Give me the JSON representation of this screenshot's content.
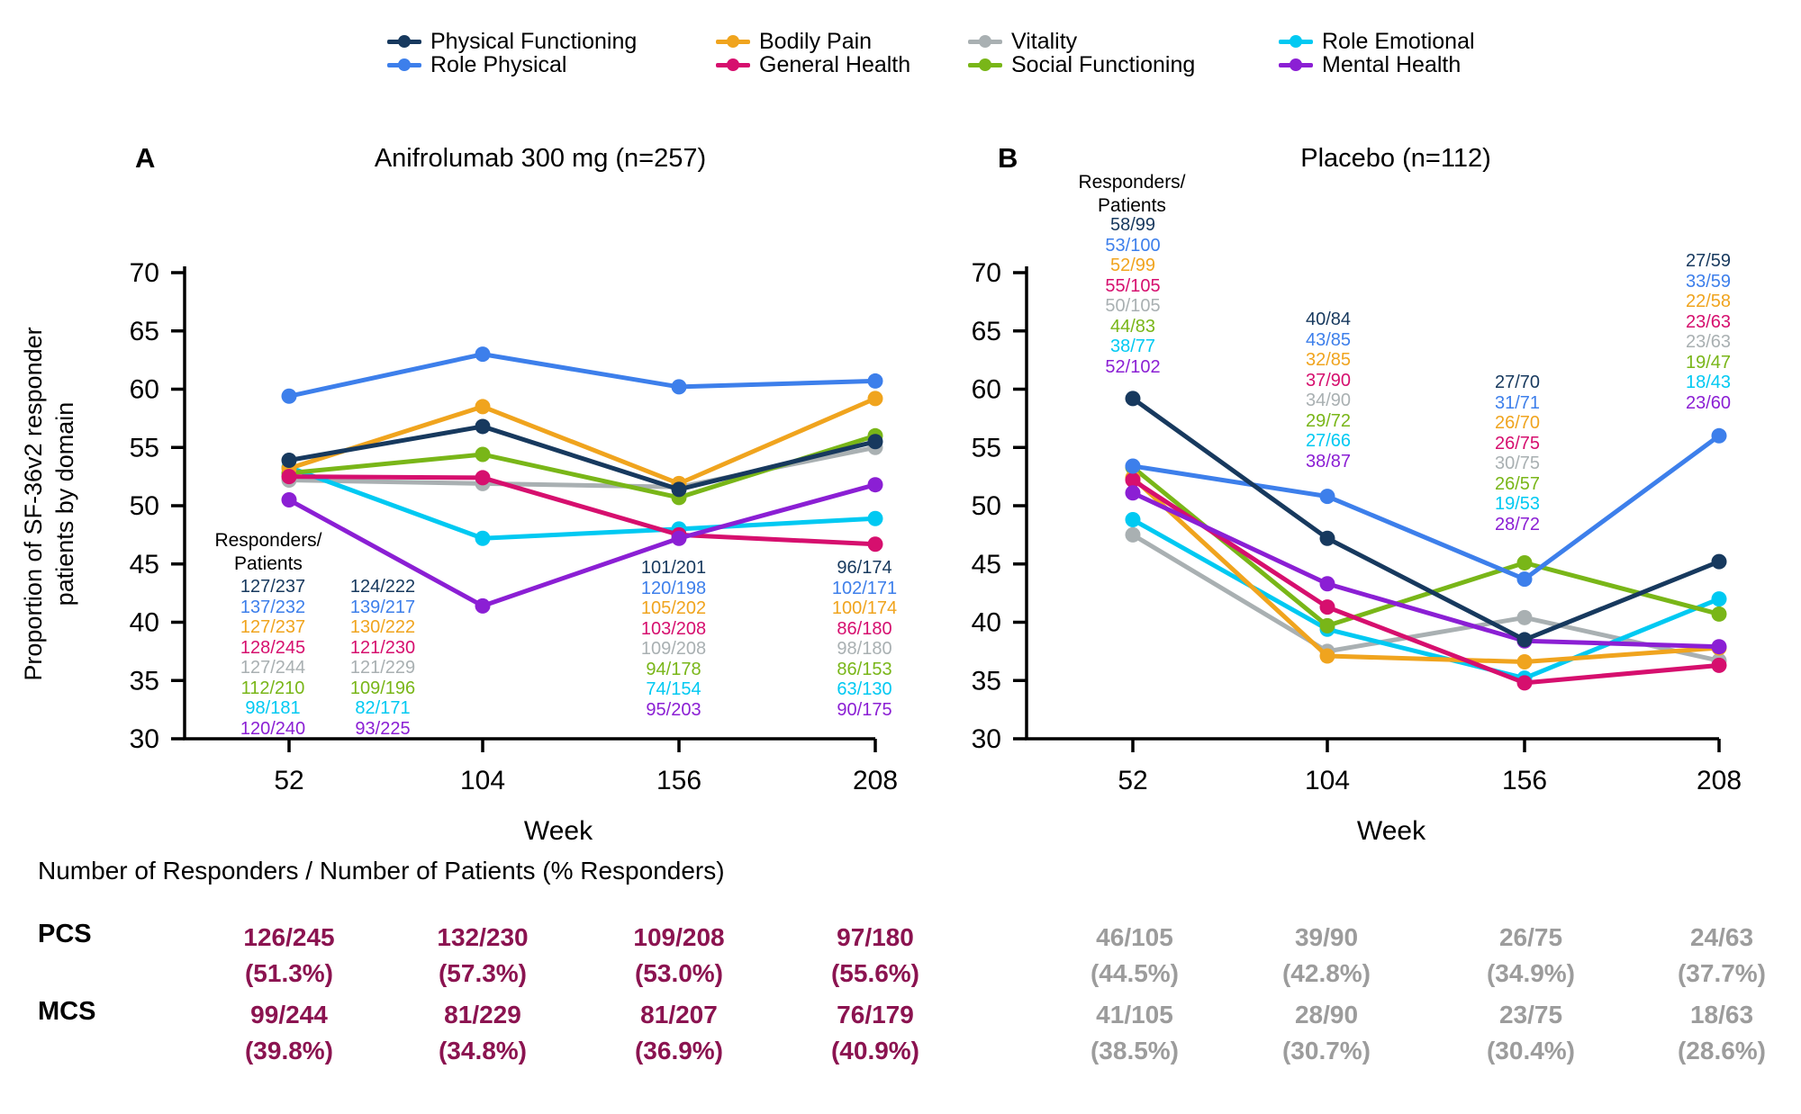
{
  "legend": {
    "items": [
      {
        "label": "Physical Functioning",
        "color": "#17395E"
      },
      {
        "label": "Role Physical",
        "color": "#3D7FEB"
      },
      {
        "label": "Bodily Pain",
        "color": "#F0A41E"
      },
      {
        "label": "General Health",
        "color": "#D60F6E"
      },
      {
        "label": "Vitality",
        "color": "#A9B0B2"
      },
      {
        "label": "Social Functioning",
        "color": "#79B618"
      },
      {
        "label": "Role Emotional",
        "color": "#00C9F2"
      },
      {
        "label": "Mental Health",
        "color": "#8B1FD4"
      }
    ]
  },
  "axes": {
    "ylabel": "Proportion of SF-36v2 responder\npatients by domain",
    "xlabel": "Week",
    "yticks": [
      30,
      35,
      40,
      45,
      50,
      55,
      60,
      65,
      70
    ],
    "ylim": [
      30,
      70
    ]
  },
  "annotation_header": "Responders/\nPatients",
  "chart_data": [
    {
      "type": "line",
      "panel_label": "A",
      "title": "Anifrolumab 300 mg (n=257)",
      "x": [
        52,
        104,
        156,
        208
      ],
      "xlabel": "Week",
      "ylim": [
        30,
        70
      ],
      "grid": false,
      "series": [
        {
          "name": "Physical Functioning",
          "color": "#17395E",
          "values": [
            53.9,
            56.8,
            51.4,
            55.5
          ],
          "responders_patients": [
            "127/237",
            "124/222",
            "101/201",
            "96/174"
          ]
        },
        {
          "name": "Role Physical",
          "color": "#3D7FEB",
          "values": [
            59.4,
            63.0,
            60.2,
            60.7
          ],
          "responders_patients": [
            "137/232",
            "139/217",
            "120/198",
            "102/171"
          ]
        },
        {
          "name": "Bodily Pain",
          "color": "#F0A41E",
          "values": [
            53.2,
            58.5,
            51.9,
            59.2
          ],
          "responders_patients": [
            "127/237",
            "130/222",
            "105/202",
            "100/174"
          ]
        },
        {
          "name": "General Health",
          "color": "#D60F6E",
          "values": [
            52.5,
            52.4,
            47.5,
            46.7
          ],
          "responders_patients": [
            "128/245",
            "121/230",
            "103/208",
            "86/180"
          ]
        },
        {
          "name": "Vitality",
          "color": "#A9B0B2",
          "values": [
            52.2,
            51.9,
            51.6,
            55.0
          ],
          "responders_patients": [
            "127/244",
            "121/229",
            "109/208",
            "98/180"
          ]
        },
        {
          "name": "Social Functioning",
          "color": "#79B618",
          "values": [
            52.8,
            54.4,
            50.7,
            56.0
          ],
          "responders_patients": [
            "112/210",
            "109/196",
            "94/178",
            "86/153"
          ]
        },
        {
          "name": "Role Emotional",
          "color": "#00C9F2",
          "values": [
            53.3,
            47.2,
            48.0,
            48.9
          ],
          "responders_patients": [
            "98/181",
            "82/171",
            "74/154",
            "63/130"
          ]
        },
        {
          "name": "Mental Health",
          "color": "#8B1FD4",
          "values": [
            50.5,
            41.4,
            47.2,
            51.8
          ],
          "responders_patients": [
            "120/240",
            "93/225",
            "95/203",
            "90/175"
          ]
        }
      ]
    },
    {
      "type": "line",
      "panel_label": "B",
      "title": "Placebo (n=112)",
      "x": [
        52,
        104,
        156,
        208
      ],
      "xlabel": "Week",
      "ylim": [
        30,
        70
      ],
      "grid": false,
      "series": [
        {
          "name": "Physical Functioning",
          "color": "#17395E",
          "values": [
            59.2,
            47.2,
            38.5,
            45.2
          ],
          "responders_patients": [
            "58/99",
            "40/84",
            "27/70",
            "27/59"
          ]
        },
        {
          "name": "Role Physical",
          "color": "#3D7FEB",
          "values": [
            53.4,
            50.8,
            43.7,
            56.0
          ],
          "responders_patients": [
            "53/100",
            "43/85",
            "31/71",
            "33/59"
          ]
        },
        {
          "name": "Bodily Pain",
          "color": "#F0A41E",
          "values": [
            52.4,
            37.1,
            36.6,
            37.8
          ],
          "responders_patients": [
            "52/99",
            "32/85",
            "26/70",
            "22/58"
          ]
        },
        {
          "name": "General Health",
          "color": "#D60F6E",
          "values": [
            52.2,
            41.3,
            34.8,
            36.3
          ],
          "responders_patients": [
            "55/105",
            "37/90",
            "26/75",
            "23/63"
          ]
        },
        {
          "name": "Vitality",
          "color": "#A9B0B2",
          "values": [
            47.5,
            37.5,
            40.4,
            36.7
          ],
          "responders_patients": [
            "50/105",
            "34/90",
            "30/75",
            "23/63"
          ]
        },
        {
          "name": "Social Functioning",
          "color": "#79B618",
          "values": [
            53.3,
            39.7,
            45.1,
            40.7
          ],
          "responders_patients": [
            "44/83",
            "29/72",
            "26/57",
            "19/47"
          ]
        },
        {
          "name": "Role Emotional",
          "color": "#00C9F2",
          "values": [
            48.8,
            39.4,
            35.2,
            42.0
          ],
          "responders_patients": [
            "38/77",
            "27/66",
            "19/53",
            "18/43"
          ]
        },
        {
          "name": "Mental Health",
          "color": "#8B1FD4",
          "values": [
            51.1,
            43.3,
            38.4,
            37.9
          ],
          "responders_patients": [
            "52/102",
            "38/87",
            "28/72",
            "23/60"
          ]
        }
      ]
    }
  ],
  "bottom_table": {
    "header": "Number of Responders / Number of Patients (% Responders)",
    "row_labels": [
      "PCS",
      "MCS"
    ],
    "groups": [
      {
        "panel": "A",
        "color": "#8B1350",
        "rows": [
          [
            {
              "frac": "126/245",
              "pct": "(51.3%)"
            },
            {
              "frac": "132/230",
              "pct": "(57.3%)"
            },
            {
              "frac": "109/208",
              "pct": "(53.0%)"
            },
            {
              "frac": "97/180",
              "pct": "(55.6%)"
            }
          ],
          [
            {
              "frac": "99/244",
              "pct": "(39.8%)"
            },
            {
              "frac": "81/229",
              "pct": "(34.8%)"
            },
            {
              "frac": "81/207",
              "pct": "(36.9%)"
            },
            {
              "frac": "76/179",
              "pct": "(40.9%)"
            }
          ]
        ]
      },
      {
        "panel": "B",
        "color": "#9C9C9C",
        "rows": [
          [
            {
              "frac": "46/105",
              "pct": "(44.5%)"
            },
            {
              "frac": "39/90",
              "pct": "(42.8%)"
            },
            {
              "frac": "26/75",
              "pct": "(34.9%)"
            },
            {
              "frac": "24/63",
              "pct": "(37.7%)"
            }
          ],
          [
            {
              "frac": "41/105",
              "pct": "(38.5%)"
            },
            {
              "frac": "28/90",
              "pct": "(30.7%)"
            },
            {
              "frac": "23/75",
              "pct": "(30.4%)"
            },
            {
              "frac": "18/63",
              "pct": "(28.6%)"
            }
          ]
        ]
      }
    ]
  }
}
